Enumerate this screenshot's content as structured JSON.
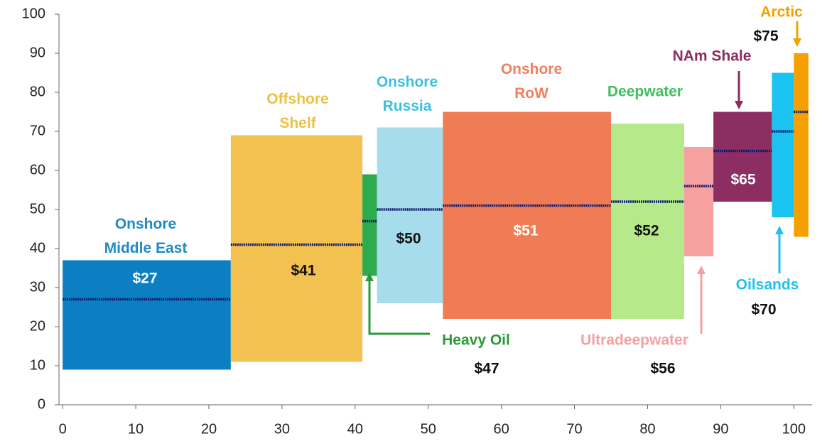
{
  "chart_data": {
    "type": "floating_bar",
    "xlim": [
      -0.5,
      102.5
    ],
    "xticks": [
      0,
      10,
      20,
      30,
      40,
      50,
      60,
      70,
      80,
      90,
      100
    ],
    "ylim": [
      0,
      100
    ],
    "yticks": [
      0,
      10,
      20,
      30,
      40,
      50,
      60,
      70,
      80,
      90,
      100
    ],
    "median_color": "#0d1a6e",
    "series": [
      {
        "name": "Onshore\nMiddle East",
        "color": "#0b7fc1",
        "label_color": "#1e8bc3",
        "x_start": 0,
        "x_end": 23,
        "low": 9,
        "high": 37,
        "value": 27,
        "value_label": "$27"
      },
      {
        "name": "Offshore\nShelf",
        "color": "#f3c14f",
        "label_color": "#f0c040",
        "x_start": 23,
        "x_end": 41,
        "low": 11,
        "high": 69,
        "value": 41,
        "value_label": "$41"
      },
      {
        "name": "Heavy Oil",
        "color": "#2eaa4f",
        "label_color": "#2a9a38",
        "x_start": 41,
        "x_end": 43,
        "low": 33,
        "high": 59,
        "value": 47,
        "value_label": "$47"
      },
      {
        "name": "Onshore\nRussia",
        "color": "#a6dcec",
        "label_color": "#3cc0e0",
        "x_start": 43,
        "x_end": 52,
        "low": 26,
        "high": 71,
        "value": 50,
        "value_label": "$50"
      },
      {
        "name": "Onshore\nRoW",
        "color": "#f07c55",
        "label_color": "#f08060",
        "x_start": 52,
        "x_end": 75,
        "low": 22,
        "high": 75,
        "value": 51,
        "value_label": "$51"
      },
      {
        "name": "Deepwater",
        "color": "#b5e98a",
        "label_color": "#3fbf5f",
        "x_start": 75,
        "x_end": 85,
        "low": 22,
        "high": 72,
        "value": 52,
        "value_label": "$52"
      },
      {
        "name": "Ultradeepwater",
        "color": "#f7a0a0",
        "label_color": "#f4a0a0",
        "x_start": 85,
        "x_end": 89,
        "low": 38,
        "high": 66,
        "value": 56,
        "value_label": "$56"
      },
      {
        "name": "NAm Shale",
        "color": "#8d2e63",
        "label_color": "#8b2d5e",
        "x_start": 89,
        "x_end": 97,
        "low": 52,
        "high": 75,
        "value": 65,
        "value_label": "$65"
      },
      {
        "name": "Oilsands",
        "color": "#1bc4f0",
        "label_color": "#20c0f0",
        "x_start": 97,
        "x_end": 100,
        "low": 48,
        "high": 85,
        "value": 70,
        "value_label": "$70"
      },
      {
        "name": "Arctic",
        "color": "#f5a000",
        "label_color": "#f0a000",
        "x_start": 100,
        "x_end": 102,
        "low": 43,
        "high": 90,
        "value": 75,
        "value_label": "$75"
      }
    ]
  }
}
